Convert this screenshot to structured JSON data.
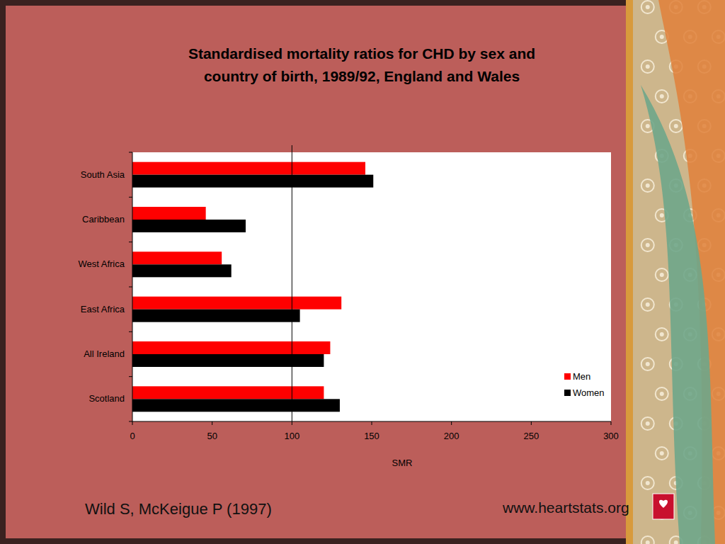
{
  "chart_data": {
    "type": "bar",
    "orientation": "horizontal",
    "title": "Standardised mortality ratios for CHD by sex and country of birth, 1989/92, England and Wales",
    "categories": [
      "South Asia",
      "Caribbean",
      "West Africa",
      "East Africa",
      "All Ireland",
      "Scotland"
    ],
    "series": [
      {
        "name": "Men",
        "color": "#ff0000",
        "values": [
          146,
          46,
          56,
          131,
          124,
          120
        ]
      },
      {
        "name": "Women",
        "color": "#000000",
        "values": [
          151,
          71,
          62,
          105,
          120,
          130
        ]
      }
    ],
    "x_label": "SMR",
    "xlim": [
      0,
      300
    ],
    "xticks": [
      0,
      50,
      100,
      150,
      200,
      250,
      300
    ],
    "reference_line": 100,
    "grid": false,
    "legend": "right",
    "source": "Wild S, McKeigue P (1997)",
    "url": "www.heartstats.org"
  }
}
